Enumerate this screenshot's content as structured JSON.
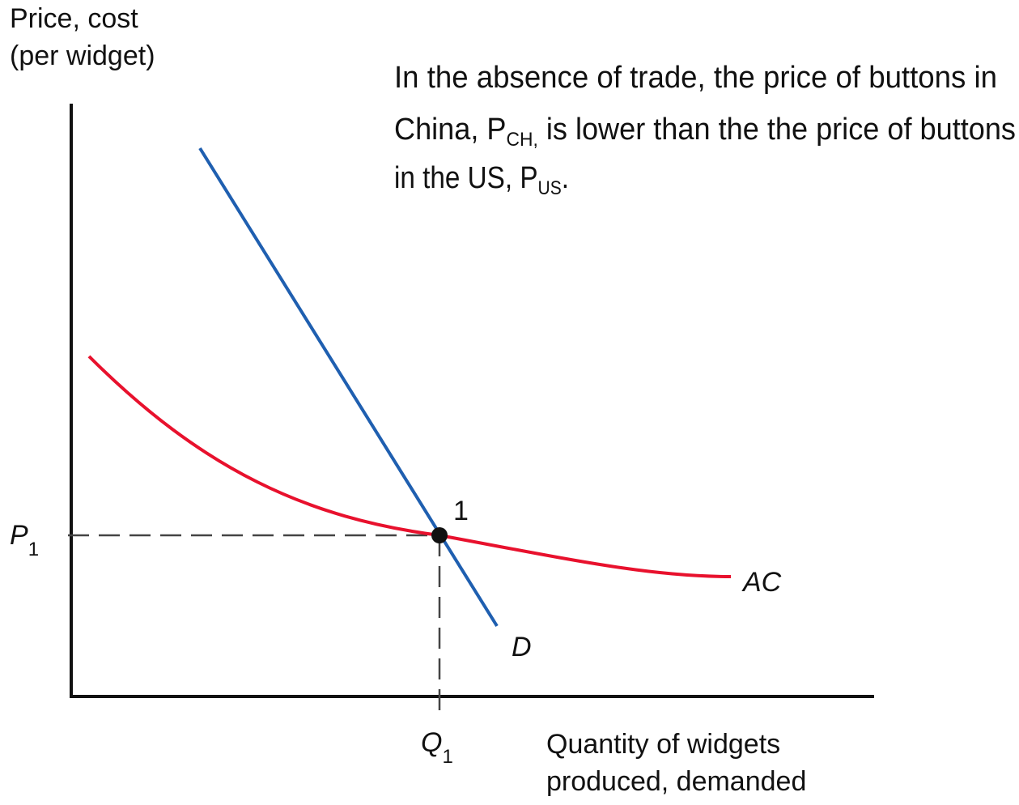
{
  "y_axis_label": [
    "Price, cost",
    "(per widget)"
  ],
  "x_axis_label": [
    "Quantity of widgets",
    "produced, demanded"
  ],
  "annotation": [
    [
      "In the absence of trade, the price of buttons in"
    ],
    [
      "China, P",
      "CH,",
      " is lower than the the price of buttons"
    ],
    [
      "in the US, P",
      "US",
      "."
    ]
  ],
  "curves": [
    {
      "label": "AC",
      "color": "#e8112d"
    },
    {
      "label": "D",
      "color": "#1f5fb0"
    }
  ],
  "point_label": "1",
  "price_label": [
    "P",
    "1"
  ],
  "quantity_label": [
    "Q",
    "1"
  ]
}
